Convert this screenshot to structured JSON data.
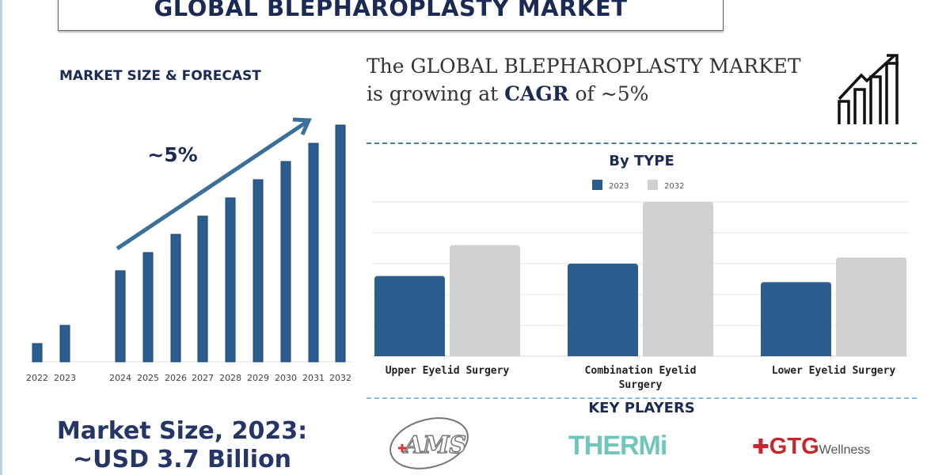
{
  "header": {
    "title": "GLOBAL BLEPHAROPLASTY MARKET"
  },
  "left": {
    "section_title": "MARKET SIZE & FORECAST",
    "cagr_label": "~5%",
    "market_size_line1": "Market Size, 2023:",
    "market_size_line2": "~USD 3.7 Billion"
  },
  "headline": {
    "pre": "The GLOBAL BLEPHAROPLASTY MARKET is growing at ",
    "bold": "CAGR",
    "post": " of ~5%",
    "icon": "growth-chart-icon"
  },
  "key_players": {
    "title": "KEY PLAYERS",
    "logos": [
      "AMS",
      "THERMi",
      "GTG",
      "Wellness"
    ]
  },
  "colors": {
    "navy": "#1b2a55",
    "bar_blue": "#2b5d8f",
    "bar_2032": "#d0d0d0",
    "therm": "#6ec7bc",
    "gtg": "#c8252c"
  },
  "chart_data": [
    {
      "type": "bar",
      "title": "",
      "categories": [
        "2022",
        "2023",
        "2024",
        "2025",
        "2026",
        "2027",
        "2028",
        "2029",
        "2030",
        "2031",
        "2032"
      ],
      "values": [
        1,
        2,
        5,
        6,
        7,
        8,
        9,
        10,
        11,
        12,
        13
      ],
      "annotation": "~5%",
      "note_relative_heights": true
    },
    {
      "type": "bar",
      "title": "By TYPE",
      "categories": [
        "Upper Eyelid Surgery",
        "Combination Eyelid Surgery",
        "Lower Eyelid Surgery"
      ],
      "series": [
        {
          "name": "2023",
          "values": [
            2.6,
            3.0,
            2.4
          ]
        },
        {
          "name": "2032",
          "values": [
            3.6,
            5.0,
            3.2
          ]
        }
      ],
      "ylim": [
        0,
        5
      ],
      "grid": true,
      "legend": "top-center"
    }
  ]
}
